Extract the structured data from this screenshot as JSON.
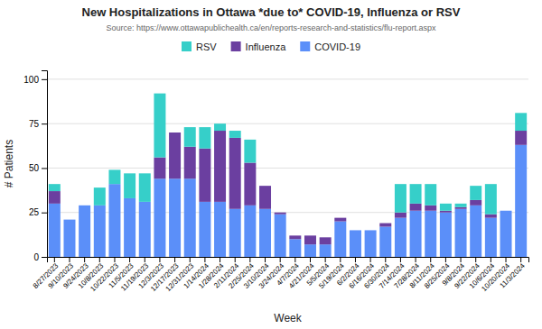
{
  "chart_data": {
    "type": "bar",
    "stacked": true,
    "title": "New Hospitalizations in Ottawa *due to* COVID-19, Influenza or RSV",
    "subtitle": "Source: https://www.ottawapublichealth.ca/en/reports-research-and-statistics/flu-report.aspx",
    "xlabel": "Week",
    "ylabel": "# Patients",
    "categories": [
      "8/27/2023",
      "9/10/2023",
      "9/24/2023",
      "10/8/2023",
      "10/22/2023",
      "11/5/2023",
      "11/19/2023",
      "12/3/2023",
      "12/17/2023",
      "12/31/2023",
      "1/14/2024",
      "1/28/2024",
      "2/11/2024",
      "2/25/2024",
      "3/10/2024",
      "3/24/2024",
      "4/7/2024",
      "4/21/2024",
      "5/5/2024",
      "5/19/2024",
      "6/2/2024",
      "6/16/2024",
      "6/30/2024",
      "7/14/2024",
      "7/28/2024",
      "8/11/2024",
      "8/25/2024",
      "9/8/2024",
      "9/22/2024",
      "10/6/2024",
      "10/20/2024",
      "11/3/2024"
    ],
    "series": [
      {
        "name": "COVID-19",
        "color": "#5B8FF9",
        "values": [
          30,
          21,
          29,
          29,
          41,
          33,
          31,
          44,
          44,
          44,
          31,
          31,
          27,
          29,
          27,
          24,
          10,
          7,
          7,
          20,
          15,
          15,
          17,
          22,
          26,
          26,
          25,
          27,
          29,
          22,
          26,
          63
        ]
      },
      {
        "name": "Influenza",
        "color": "#6B3FA0",
        "values": [
          7,
          0,
          0,
          0,
          0,
          0,
          0,
          12,
          26,
          18,
          30,
          40,
          40,
          24,
          13,
          1,
          2,
          5,
          4,
          2,
          0,
          0,
          2,
          3,
          4,
          3,
          1,
          1,
          3,
          2,
          0,
          8
        ]
      },
      {
        "name": "RSV",
        "color": "#36CFC9",
        "values": [
          4,
          0,
          0,
          10,
          8,
          14,
          16,
          36,
          0,
          11,
          12,
          4,
          4,
          13,
          0,
          0,
          0,
          0,
          0,
          0,
          0,
          0,
          0,
          16,
          11,
          12,
          4,
          2,
          8,
          17,
          0,
          10
        ]
      }
    ],
    "ylim": [
      0,
      105
    ],
    "yticks": [
      0,
      25,
      50,
      75,
      100
    ],
    "grid": true,
    "legend": "top"
  }
}
